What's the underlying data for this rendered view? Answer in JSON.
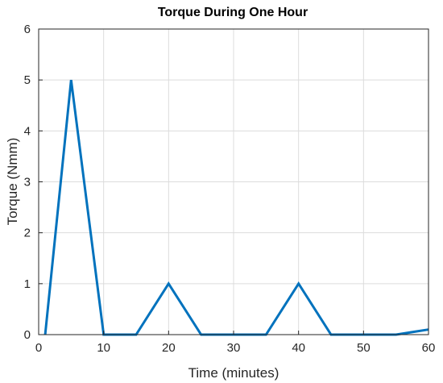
{
  "chart_data": {
    "type": "line",
    "title": "Torque During One Hour",
    "xlabel": "Time (minutes)",
    "ylabel": "Torque (Nmm)",
    "xlim": [
      0,
      60
    ],
    "ylim": [
      0,
      6
    ],
    "xticks": [
      0,
      10,
      20,
      30,
      40,
      50,
      60
    ],
    "yticks": [
      0,
      1,
      2,
      3,
      4,
      5,
      6
    ],
    "grid": true,
    "series": [
      {
        "color": "#0072BD",
        "x": [
          1,
          5,
          10,
          15,
          20,
          25,
          30,
          35,
          40,
          45,
          50,
          55,
          60
        ],
        "y": [
          0,
          5,
          0,
          0,
          1,
          0,
          0,
          0,
          1,
          0,
          0,
          0,
          0.1
        ]
      }
    ]
  }
}
